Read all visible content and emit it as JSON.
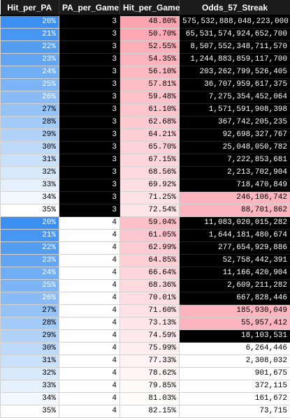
{
  "table": {
    "headers": [
      "Hit_per_PA",
      "PA_per_Game",
      "Hit_per_Game",
      "Odds_57_Streak"
    ],
    "rows": [
      [
        "20%",
        "3",
        "48.80%",
        "575,532,888,048,223,000"
      ],
      [
        "21%",
        "3",
        "50.70%",
        "65,531,574,924,652,700"
      ],
      [
        "22%",
        "3",
        "52.55%",
        "8,507,552,348,711,570"
      ],
      [
        "23%",
        "3",
        "54.35%",
        "1,244,883,859,117,700"
      ],
      [
        "24%",
        "3",
        "56.10%",
        "203,262,799,526,405"
      ],
      [
        "25%",
        "3",
        "57.81%",
        "36,707,959,617,375"
      ],
      [
        "26%",
        "3",
        "59.48%",
        "7,275,354,452,064"
      ],
      [
        "27%",
        "3",
        "61.10%",
        "1,571,591,908,398"
      ],
      [
        "28%",
        "3",
        "62.68%",
        "367,742,205,235"
      ],
      [
        "29%",
        "3",
        "64.21%",
        "92,698,327,767"
      ],
      [
        "30%",
        "3",
        "65.70%",
        "25,048,050,782"
      ],
      [
        "31%",
        "3",
        "67.15%",
        "7,222,853,681"
      ],
      [
        "32%",
        "3",
        "68.56%",
        "2,213,702,904"
      ],
      [
        "33%",
        "3",
        "69.92%",
        "718,470,849"
      ],
      [
        "34%",
        "3",
        "71.25%",
        "246,106,742"
      ],
      [
        "35%",
        "3",
        "72.54%",
        "88,701,862"
      ],
      [
        "20%",
        "4",
        "59.04%",
        "11,083,020,015,282"
      ],
      [
        "21%",
        "4",
        "61.05%",
        "1,644,181,480,674"
      ],
      [
        "22%",
        "4",
        "62.99%",
        "277,654,929,886"
      ],
      [
        "23%",
        "4",
        "64.85%",
        "52,758,442,391"
      ],
      [
        "24%",
        "4",
        "66.64%",
        "11,166,420,904"
      ],
      [
        "25%",
        "4",
        "68.36%",
        "2,609,211,282"
      ],
      [
        "26%",
        "4",
        "70.01%",
        "667,828,446"
      ],
      [
        "27%",
        "4",
        "71.60%",
        "185,930,049"
      ],
      [
        "28%",
        "4",
        "73.13%",
        "55,957,412"
      ],
      [
        "29%",
        "4",
        "74.59%",
        "18,103,531"
      ],
      [
        "30%",
        "4",
        "75.99%",
        "6,264,446"
      ],
      [
        "31%",
        "4",
        "77.33%",
        "2,308,032"
      ],
      [
        "32%",
        "4",
        "78.62%",
        "901,675"
      ],
      [
        "33%",
        "4",
        "79.85%",
        "372,115"
      ],
      [
        "34%",
        "4",
        "81.03%",
        "161,672"
      ],
      [
        "35%",
        "4",
        "82.15%",
        "73,715"
      ]
    ]
  },
  "colors": {
    "header_bg": "#1b1b1b",
    "header_text": "#ffffff",
    "hit_per_pa_scale": [
      "#3a8ff0",
      "#ffffff"
    ],
    "pa_3_bg": "#000000",
    "pa_4_bg": "#ffffff",
    "hit_per_game_scale": [
      "#fca4b0",
      "#ffffff"
    ],
    "odds_black_bg": "#000000",
    "odds_pink_bg": "#fcb4be",
    "odds_white_bg": "#ffffff"
  }
}
